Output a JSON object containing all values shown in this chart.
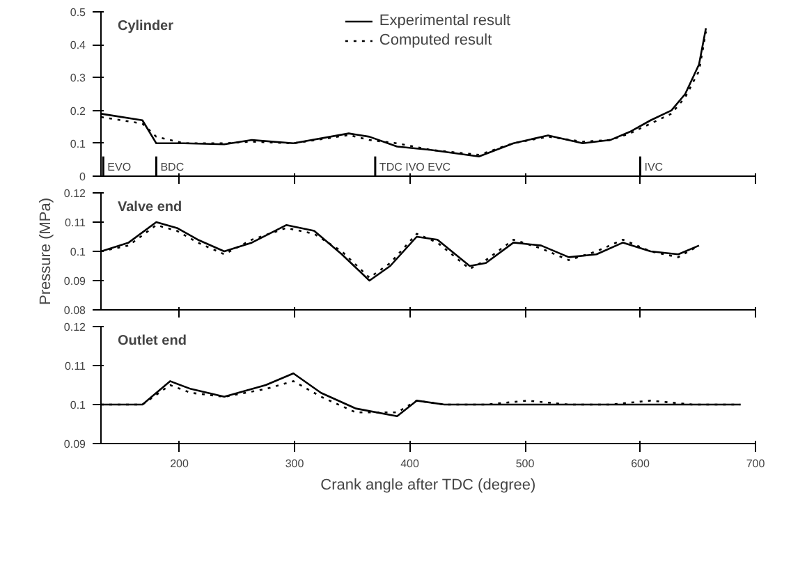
{
  "chart_data": [
    {
      "type": "line",
      "title": "Cylinder",
      "legend": "top right",
      "tick_labels": "y",
      "xlim": [
        132,
        700
      ],
      "xticks": [
        200,
        300,
        400,
        500,
        600,
        700
      ],
      "ylim": [
        0,
        0.5
      ],
      "yticks": [
        0,
        0.1,
        0.2,
        0.3,
        0.4,
        0.5
      ],
      "ref_lines": [
        {
          "axis": "x",
          "value": 134,
          "label": "EVO"
        },
        {
          "axis": "x",
          "value": 180,
          "label": "BDC"
        },
        {
          "axis": "x",
          "value": 370,
          "label": "TDC IVO EVC"
        },
        {
          "axis": "x",
          "value": 600,
          "label": "IVC"
        }
      ],
      "series": [
        {
          "name": "Experimental result",
          "color": "#000000",
          "line_style": "solid",
          "x": [
            132,
            168,
            180,
            204,
            239,
            263,
            299,
            347,
            365,
            389,
            418,
            460,
            490,
            520,
            550,
            574,
            591,
            609,
            627,
            639,
            651,
            657
          ],
          "values": [
            0.19,
            0.17,
            0.1,
            0.1,
            0.097,
            0.11,
            0.1,
            0.13,
            0.12,
            0.09,
            0.08,
            0.06,
            0.1,
            0.124,
            0.1,
            0.11,
            0.135,
            0.17,
            0.2,
            0.25,
            0.34,
            0.45
          ]
        },
        {
          "name": "Computed result",
          "color": "#000000",
          "line_style": "dotted",
          "x": [
            132,
            168,
            180,
            204,
            239,
            263,
            299,
            347,
            365,
            389,
            418,
            460,
            490,
            520,
            550,
            574,
            591,
            609,
            627,
            639,
            651,
            657
          ],
          "values": [
            0.18,
            0.16,
            0.12,
            0.1,
            0.1,
            0.105,
            0.1,
            0.125,
            0.11,
            0.1,
            0.08,
            0.065,
            0.1,
            0.12,
            0.105,
            0.11,
            0.13,
            0.16,
            0.19,
            0.24,
            0.32,
            0.44
          ]
        }
      ]
    },
    {
      "type": "line",
      "title": "Valve end",
      "ylabel": "Pressure (MPa)",
      "legend": false,
      "tick_labels": "y",
      "xlim": [
        132,
        700
      ],
      "xticks": [
        200,
        300,
        400,
        500,
        600,
        700
      ],
      "ylim": [
        0.08,
        0.12
      ],
      "yticks": [
        0.08,
        0.09,
        0.1,
        0.11,
        0.12
      ],
      "series": [
        {
          "color": "#000000",
          "line_style": "solid",
          "x": [
            132,
            156,
            180,
            198,
            216,
            239,
            263,
            293,
            317,
            341,
            365,
            383,
            406,
            424,
            452,
            466,
            490,
            514,
            538,
            562,
            585,
            609,
            633,
            651
          ],
          "values": [
            0.1,
            0.103,
            0.11,
            0.108,
            0.104,
            0.1,
            0.103,
            0.109,
            0.107,
            0.099,
            0.09,
            0.095,
            0.105,
            0.104,
            0.095,
            0.096,
            0.103,
            0.102,
            0.098,
            0.099,
            0.103,
            0.1,
            0.099,
            0.102
          ]
        },
        {
          "color": "#000000",
          "line_style": "dotted",
          "x": [
            132,
            156,
            180,
            198,
            216,
            239,
            263,
            293,
            317,
            341,
            365,
            383,
            406,
            424,
            452,
            466,
            490,
            514,
            538,
            562,
            585,
            609,
            633,
            651
          ],
          "values": [
            0.1,
            0.102,
            0.109,
            0.107,
            0.103,
            0.099,
            0.104,
            0.108,
            0.106,
            0.1,
            0.091,
            0.096,
            0.106,
            0.103,
            0.094,
            0.097,
            0.104,
            0.101,
            0.097,
            0.1,
            0.104,
            0.1,
            0.098,
            0.102
          ]
        }
      ]
    },
    {
      "type": "line",
      "title": "Outlet end",
      "xlabel": "Crank angle after TDC (degree)",
      "legend": false,
      "xlim": [
        132,
        700
      ],
      "xticks": [
        200,
        300,
        400,
        500,
        600,
        700
      ],
      "ylim": [
        0.09,
        0.12
      ],
      "yticks": [
        0.09,
        0.1,
        0.11,
        0.12
      ],
      "series": [
        {
          "color": "#000000",
          "line_style": "solid",
          "x": [
            132,
            168,
            192,
            210,
            239,
            275,
            299,
            323,
            353,
            389,
            406,
            430,
            466,
            502,
            538,
            574,
            609,
            645,
            687
          ],
          "values": [
            0.1,
            0.1,
            0.106,
            0.104,
            0.102,
            0.105,
            0.108,
            0.103,
            0.099,
            0.097,
            0.101,
            0.1,
            0.1,
            0.1,
            0.1,
            0.1,
            0.1,
            0.1,
            0.1
          ]
        },
        {
          "color": "#000000",
          "line_style": "dotted",
          "x": [
            132,
            168,
            192,
            210,
            239,
            275,
            299,
            323,
            353,
            389,
            406,
            430,
            466,
            502,
            538,
            574,
            609,
            645,
            687
          ],
          "values": [
            0.1,
            0.1,
            0.105,
            0.103,
            0.102,
            0.104,
            0.106,
            0.102,
            0.098,
            0.098,
            0.101,
            0.1,
            0.1,
            0.101,
            0.1,
            0.1,
            0.101,
            0.1,
            0.1
          ]
        }
      ]
    }
  ]
}
